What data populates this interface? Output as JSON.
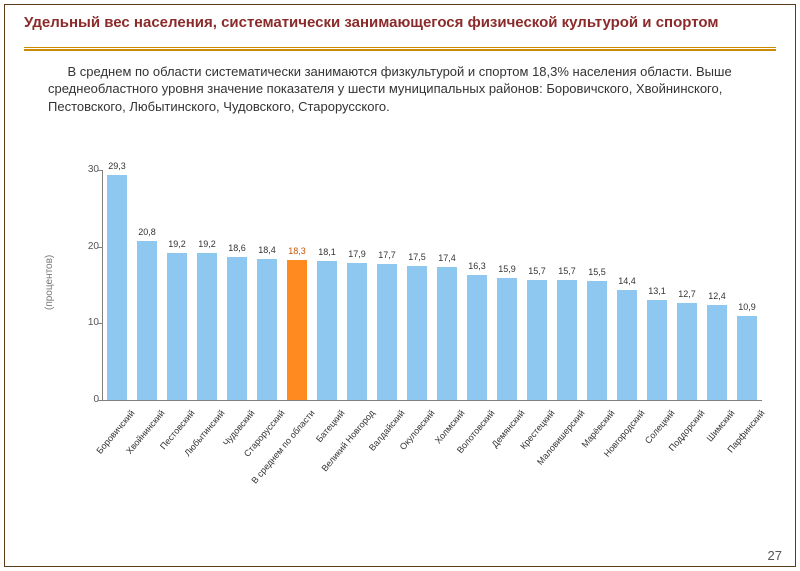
{
  "title": "Удельный вес населения, систематически занимающегося физической культурой и спортом",
  "paragraph": "В среднем по области систематически занимаются физкультурой и спортом 18,3% населения области. Выше среднеобластного уровня значение показателя у шести муниципальных районов: Боровичского, Хвойнинского, Пестовского, Любытинского, Чудовского, Старорусского.",
  "page_number": "27",
  "chart": {
    "type": "bar",
    "ylabel": "(процентов)",
    "ylim": [
      0,
      30
    ],
    "ytick_step": 10,
    "bar_color": "#8ec7ef",
    "highlight_color": "#ff8a1f",
    "label_color": "#333333",
    "highlight_label_color": "#cc5500",
    "axis_color": "#808080",
    "bar_width": 0.68,
    "categories": [
      "Боровичский",
      "Хвойнинский",
      "Пестовский",
      "Любытинский",
      "Чудовский",
      "Старорусский",
      "В среднем по области",
      "Батецкий",
      "Великий Новгород",
      "Валдайский",
      "Окуловский",
      "Холмский",
      "Волотовский",
      "Демянский",
      "Крестецкий",
      "Маловишерский",
      "Марёвский",
      "Новгородский",
      "Солецкий",
      "Поддорский",
      "Шимский",
      "Парфинский"
    ],
    "values": [
      29.3,
      20.8,
      19.2,
      19.2,
      18.6,
      18.4,
      18.3,
      18.1,
      17.9,
      17.7,
      17.5,
      17.4,
      16.3,
      15.9,
      15.7,
      15.7,
      15.5,
      14.4,
      13.1,
      12.7,
      12.4,
      10.9
    ],
    "value_labels": [
      "29,3",
      "20,8",
      "19,2",
      "19,2",
      "18,6",
      "18,4",
      "18,3",
      "18,1",
      "17,9",
      "17,7",
      "17,5",
      "17,4",
      "16,3",
      "15,9",
      "15,7",
      "15,7",
      "15,5",
      "14,4",
      "13,1",
      "12,7",
      "12,4",
      "10,9"
    ],
    "highlight_index": 6
  }
}
